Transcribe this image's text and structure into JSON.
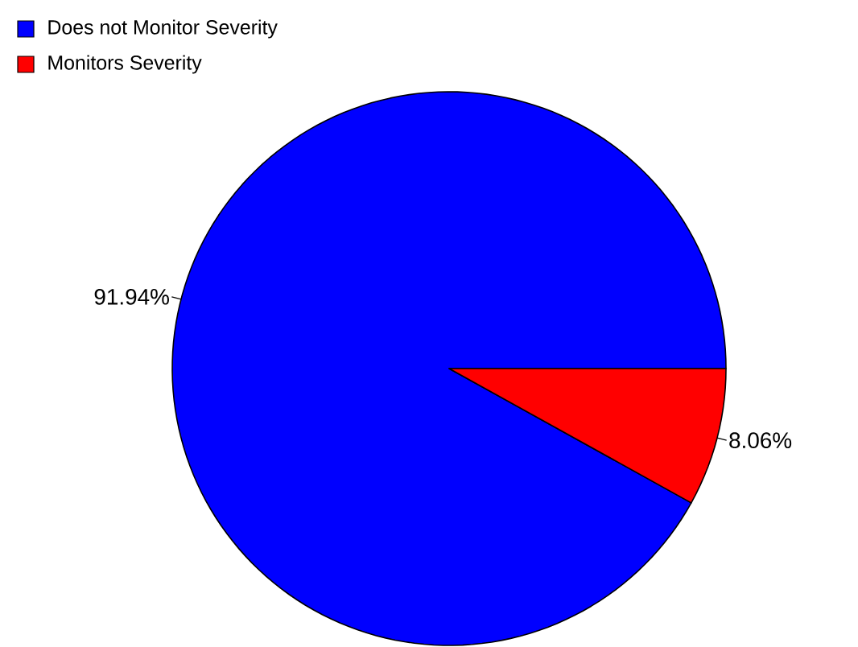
{
  "chart_data": {
    "type": "pie",
    "categories": [
      "Does not Monitor Severity",
      "Monitors Severity"
    ],
    "values": [
      91.94,
      8.06
    ],
    "colors": [
      "#0000ff",
      "#ff0000"
    ],
    "value_labels": [
      "91.94%",
      "8.06%"
    ],
    "legend": "top left"
  }
}
